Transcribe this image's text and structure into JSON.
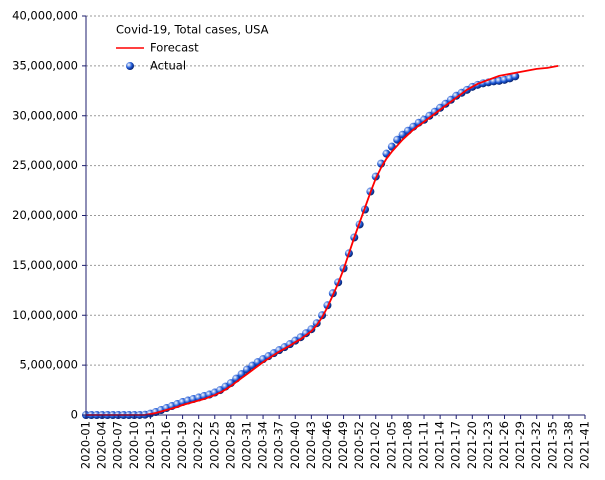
{
  "chart_data": {
    "type": "line",
    "title": "Covid-19, Total cases, USA",
    "categories": [
      "2020-01",
      null,
      null,
      "2020-04",
      null,
      null,
      "2020-07",
      null,
      null,
      "2020-10",
      null,
      null,
      "2020-13",
      null,
      null,
      "2020-16",
      null,
      null,
      "2020-19",
      null,
      null,
      "2020-22",
      null,
      null,
      "2020-25",
      null,
      null,
      "2020-28",
      null,
      null,
      "2020-31",
      null,
      null,
      "2020-34",
      null,
      null,
      "2020-37",
      null,
      null,
      "2020-40",
      null,
      null,
      "2020-43",
      null,
      null,
      "2020-46",
      null,
      null,
      "2020-49",
      null,
      null,
      "2020-52",
      null,
      null,
      "2021-02",
      null,
      null,
      "2021-05",
      null,
      null,
      "2021-08",
      null,
      null,
      "2021-11",
      null,
      null,
      "2021-14",
      null,
      null,
      "2021-17",
      null,
      null,
      "2021-20",
      null,
      null,
      "2021-23",
      null,
      null,
      "2021-26",
      null,
      null,
      "2021-29",
      null,
      null,
      "2021-32",
      null,
      null,
      "2021-35",
      null,
      null,
      "2021-38",
      null,
      null,
      "2021-41"
    ],
    "series": [
      {
        "name": "Forecast",
        "color": "#ff0000",
        "style": "line",
        "values": [
          0,
          0,
          0,
          0,
          0,
          0,
          0,
          0,
          0,
          0,
          0,
          0,
          100000,
          200000,
          350000,
          500000,
          650000,
          800000,
          1000000,
          1150000,
          1300000,
          1450000,
          1600000,
          1800000,
          2000000,
          2250000,
          2550000,
          2900000,
          3300000,
          3700000,
          4100000,
          4500000,
          4900000,
          5300000,
          5650000,
          6000000,
          6350000,
          6650000,
          6950000,
          7300000,
          7600000,
          8000000,
          8400000,
          9000000,
          9800000,
          10800000,
          12000000,
          13200000,
          14600000,
          16200000,
          17800000,
          19300000,
          20800000,
          22300000,
          23700000,
          24800000,
          25700000,
          26400000,
          27000000,
          27600000,
          28100000,
          28600000,
          29000000,
          29400000,
          29800000,
          30200000,
          30600000,
          31000000,
          31400000,
          31800000,
          32200000,
          32600000,
          32900000,
          33200000,
          33400000,
          33600000,
          33800000,
          34000000,
          34100000,
          34200000,
          34300000,
          34400000,
          34500000,
          34600000,
          34700000,
          34750000,
          34800000,
          34900000,
          35000000,
          null,
          null,
          null,
          null,
          null
        ]
      },
      {
        "name": "Actual",
        "color": "#1a56d6",
        "style": "markers",
        "values": [
          0,
          0,
          0,
          0,
          0,
          0,
          0,
          0,
          0,
          100,
          2000,
          30000,
          140000,
          300000,
          500000,
          700000,
          900000,
          1100000,
          1300000,
          1450000,
          1600000,
          1750000,
          1900000,
          2050000,
          2250000,
          2500000,
          2850000,
          3200000,
          3650000,
          4100000,
          4550000,
          4950000,
          5300000,
          5600000,
          5900000,
          6200000,
          6500000,
          6800000,
          7100000,
          7450000,
          7800000,
          8200000,
          8600000,
          9200000,
          10000000,
          11000000,
          12200000,
          13300000,
          14700000,
          16200000,
          17800000,
          19100000,
          20600000,
          22400000,
          23900000,
          25200000,
          26200000,
          26900000,
          27600000,
          28100000,
          28500000,
          28900000,
          29300000,
          29600000,
          30000000,
          30400000,
          30800000,
          31200000,
          31600000,
          32000000,
          32300000,
          32600000,
          32900000,
          33100000,
          33250000,
          33350000,
          33450000,
          33500000,
          33600000,
          33750000,
          33950000,
          null,
          null,
          null,
          null,
          null,
          null,
          null,
          null,
          null,
          null,
          null,
          null,
          null
        ]
      }
    ],
    "ylim": [
      0,
      40000000
    ],
    "yticks": [
      0,
      {
        "value": 5000000,
        "label": "5,000,000"
      },
      {
        "value": 10000000,
        "label": "10,000,000"
      },
      {
        "value": 15000000,
        "label": "15,000,000"
      },
      {
        "value": 20000000,
        "label": "20,000,000"
      },
      {
        "value": 25000000,
        "label": "25,000,000"
      },
      {
        "value": 30000000,
        "label": "30,000,000"
      },
      {
        "value": 35000000,
        "label": "35,000,000"
      },
      {
        "value": 40000000,
        "label": "40,000,000"
      }
    ],
    "grid": true
  }
}
